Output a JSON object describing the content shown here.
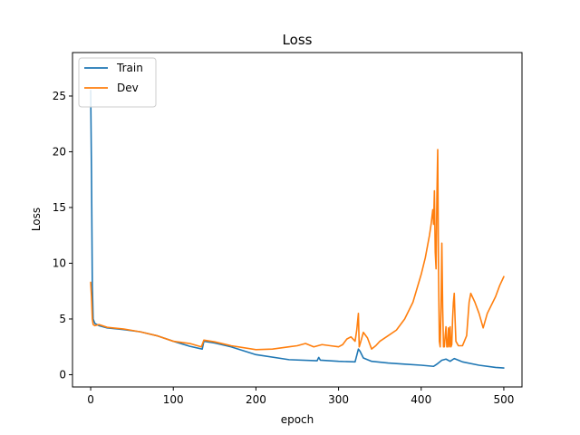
{
  "chart_data": {
    "type": "line",
    "title": "Loss",
    "xlabel": "epoch",
    "ylabel": "Loss",
    "xlim": [
      -22,
      522
    ],
    "ylim": [
      -1.1,
      28.9
    ],
    "xticks": [
      0,
      100,
      200,
      300,
      400,
      500
    ],
    "yticks": [
      0,
      5,
      10,
      15,
      20,
      25
    ],
    "grid": false,
    "legend": "top-left",
    "series": [
      {
        "name": "Train",
        "color": "#1f77b4",
        "x": [
          0,
          1,
          2,
          3,
          5,
          10,
          20,
          40,
          60,
          80,
          100,
          120,
          135,
          137,
          150,
          170,
          200,
          240,
          274,
          276,
          278,
          300,
          320,
          324,
          326,
          330,
          340,
          360,
          380,
          400,
          415,
          418,
          420,
          425,
          430,
          435,
          440,
          450,
          470,
          490,
          500
        ],
        "values": [
          25.5,
          18.0,
          8.0,
          5.0,
          4.6,
          4.4,
          4.2,
          4.05,
          3.85,
          3.5,
          3.0,
          2.55,
          2.3,
          3.0,
          2.85,
          2.5,
          1.8,
          1.35,
          1.25,
          1.55,
          1.3,
          1.2,
          1.15,
          2.3,
          2.1,
          1.5,
          1.2,
          1.05,
          0.95,
          0.85,
          0.75,
          0.9,
          1.0,
          1.3,
          1.4,
          1.2,
          1.45,
          1.15,
          0.85,
          0.65,
          0.6
        ]
      },
      {
        "name": "Dev",
        "color": "#ff7f0e",
        "x": [
          0,
          1,
          2,
          3,
          5,
          10,
          20,
          40,
          60,
          80,
          100,
          120,
          134,
          137,
          150,
          170,
          200,
          220,
          240,
          250,
          260,
          270,
          280,
          290,
          300,
          305,
          310,
          315,
          320,
          322,
          324,
          325,
          327,
          330,
          335,
          340,
          345,
          350,
          360,
          370,
          380,
          390,
          400,
          405,
          410,
          412,
          414,
          415,
          416,
          417,
          418,
          419,
          420,
          421,
          422,
          423,
          424,
          425,
          426,
          427,
          428,
          429,
          430,
          431,
          432,
          433,
          434,
          435,
          436,
          437,
          438,
          439,
          440,
          441,
          442,
          445,
          450,
          455,
          458,
          460,
          465,
          470,
          475,
          480,
          490,
          495,
          500
        ],
        "values": [
          8.3,
          7.0,
          5.0,
          4.5,
          4.4,
          4.5,
          4.25,
          4.1,
          3.85,
          3.5,
          3.0,
          2.8,
          2.5,
          3.1,
          2.95,
          2.6,
          2.25,
          2.3,
          2.5,
          2.6,
          2.8,
          2.5,
          2.7,
          2.6,
          2.5,
          2.7,
          3.2,
          3.4,
          3.0,
          4.0,
          5.5,
          2.5,
          3.0,
          3.8,
          3.3,
          2.3,
          2.6,
          3.0,
          3.5,
          4.0,
          5.0,
          6.5,
          9.0,
          10.5,
          12.5,
          13.5,
          14.8,
          13.5,
          16.5,
          11.0,
          9.5,
          16.0,
          20.2,
          9.0,
          3.0,
          2.5,
          6.0,
          11.8,
          6.0,
          2.5,
          2.5,
          3.5,
          4.3,
          2.5,
          2.5,
          4.2,
          2.5,
          4.3,
          2.5,
          2.7,
          5.0,
          6.5,
          7.3,
          5.0,
          3.0,
          2.6,
          2.6,
          3.5,
          6.5,
          7.3,
          6.5,
          5.5,
          4.2,
          5.5,
          7.0,
          8.0,
          8.8
        ]
      }
    ]
  }
}
